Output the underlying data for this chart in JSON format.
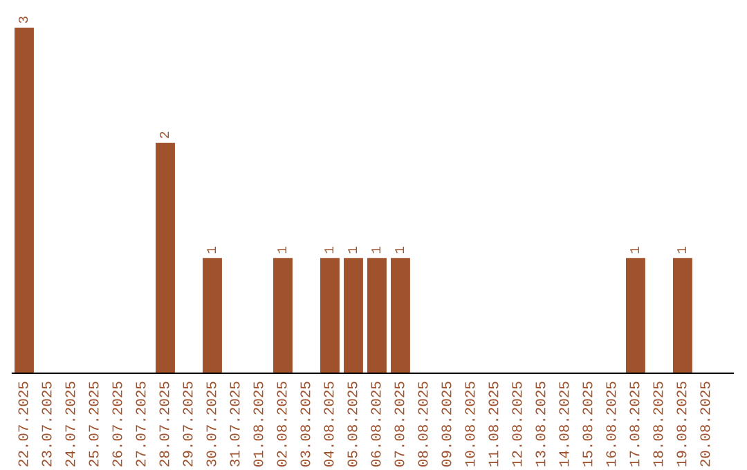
{
  "chart_data": {
    "type": "bar",
    "categories": [
      "22.07.2025",
      "23.07.2025",
      "24.07.2025",
      "25.07.2025",
      "26.07.2025",
      "27.07.2025",
      "28.07.2025",
      "29.07.2025",
      "30.07.2025",
      "31.07.2025",
      "01.08.2025",
      "02.08.2025",
      "03.08.2025",
      "04.08.2025",
      "05.08.2025",
      "06.08.2025",
      "07.08.2025",
      "08.08.2025",
      "09.08.2025",
      "10.08.2025",
      "11.08.2025",
      "12.08.2025",
      "13.08.2025",
      "14.08.2025",
      "15.08.2025",
      "16.08.2025",
      "17.08.2025",
      "18.08.2025",
      "19.08.2025",
      "20.08.2025"
    ],
    "values": [
      3,
      0,
      0,
      0,
      0,
      0,
      2,
      0,
      1,
      0,
      0,
      1,
      0,
      1,
      1,
      1,
      1,
      0,
      0,
      0,
      0,
      0,
      0,
      0,
      0,
      0,
      1,
      0,
      1,
      0
    ],
    "value_labels": [
      "3",
      null,
      null,
      null,
      null,
      null,
      "2",
      null,
      "1",
      null,
      null,
      "1",
      null,
      "1",
      "1",
      "1",
      "1",
      null,
      null,
      null,
      null,
      null,
      null,
      null,
      null,
      null,
      "1",
      null,
      "1",
      null
    ],
    "color": "#a0522d",
    "grid": false,
    "legend": false
  }
}
